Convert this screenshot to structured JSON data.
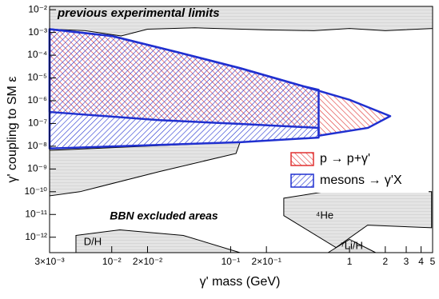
{
  "chart_data": {
    "type": "area",
    "x_label": "γ' mass (GeV)",
    "y_label": "γ' coupling to SM ε",
    "xscale": "log",
    "yscale": "log",
    "xlim": [
      0.003,
      5
    ],
    "ylim": [
      2.1e-13,
      0.014
    ],
    "xticks": [
      {
        "value": 0.003,
        "label": "3×10⁻³"
      },
      {
        "value": 0.01,
        "label": "10⁻²"
      },
      {
        "value": 0.02,
        "label": "2×10⁻²"
      },
      {
        "value": 0.1,
        "label": "10⁻¹"
      },
      {
        "value": 0.2,
        "label": "2×10⁻¹"
      },
      1,
      2,
      3,
      4,
      5
    ],
    "yticks": [
      {
        "value": 0.01,
        "label": "10⁻²"
      },
      {
        "value": 0.001,
        "label": "10⁻³"
      },
      {
        "value": 0.0001,
        "label": "10⁻⁴"
      },
      {
        "value": 1e-05,
        "label": "10⁻⁵"
      },
      {
        "value": 1e-06,
        "label": "10⁻⁶"
      },
      {
        "value": 1e-07,
        "label": "10⁻⁷"
      },
      {
        "value": 1e-08,
        "label": "10⁻⁸"
      },
      {
        "value": 1e-09,
        "label": "10⁻⁹"
      },
      {
        "value": 1e-10,
        "label": "10⁻¹⁰"
      },
      {
        "value": 1e-11,
        "label": "10⁻¹¹"
      },
      {
        "value": 1e-12,
        "label": "10⁻¹²"
      }
    ],
    "legend": "right",
    "series": [
      {
        "name": "p → p+γ'",
        "color": "#e03030",
        "x": [
          0.003,
          0.01,
          0.035,
          0.12,
          0.41,
          1.0,
          2.2,
          1.43,
          0.55,
          0.55,
          0.12,
          0.025,
          0.003
        ],
        "y": [
          0.0014,
          0.0007,
          0.00014,
          2.7e-05,
          4.3e-06,
          1.1e-06,
          2.1e-07,
          6.4e-08,
          2.9e-08,
          6.4e-08,
          9.6e-08,
          1.4e-07,
          3.2e-07
        ]
      },
      {
        "name": "mesons → γ'X",
        "color": "#2030d0",
        "x": [
          0.003,
          0.01,
          0.035,
          0.12,
          0.41,
          0.55,
          0.55,
          0.12,
          0.0117,
          0.003
        ],
        "y": [
          0.0014,
          0.0007,
          0.00014,
          2.7e-05,
          4.3e-06,
          3e-06,
          2.4e-08,
          1.5e-08,
          1e-08,
          7.9e-09
        ]
      }
    ],
    "regions": [
      {
        "label": "previous experimental limits",
        "x": [
          0.003,
          5,
          5,
          2,
          1,
          0.5,
          0.2,
          0.05,
          0.02,
          0.012,
          0.006,
          0.003
        ],
        "y": [
          0.014,
          0.014,
          0.0015,
          0.0012,
          0.0015,
          0.0012,
          0.0013,
          0.0016,
          0.0014,
          0.0007,
          0.0012,
          0.0014
        ]
      },
      {
        "x": [
          0.003,
          0.12,
          0.111,
          0.025,
          0.0054,
          0.003
        ],
        "y": [
          6.6e-09,
          1.5e-08,
          4.8e-09,
          7.6e-10,
          1e-10,
          6.6e-11
        ]
      },
      {
        "label": "⁴He",
        "x": [
          0.28,
          0.77,
          4.9,
          4.9,
          1.42,
          0.77,
          0.28
        ],
        "y": [
          5.2e-11,
          1.2e-10,
          1e-10,
          2.6e-12,
          3.4e-12,
          3.5e-13,
          8.9e-12
        ]
      },
      {
        "label": "D/H",
        "x": [
          0.005,
          0.0117,
          0.04,
          0.12,
          0.005
        ],
        "y": [
          1.2e-12,
          2.1e-12,
          1.2e-12,
          2.1e-13,
          2.1e-13
        ]
      },
      {
        "label": "⁷Li/H",
        "x": [
          0.66,
          1.0,
          1.66
        ],
        "y": [
          2.1e-13,
          8e-13,
          2.1e-13
        ]
      }
    ],
    "annotations": [
      "BBN excluded areas"
    ]
  }
}
